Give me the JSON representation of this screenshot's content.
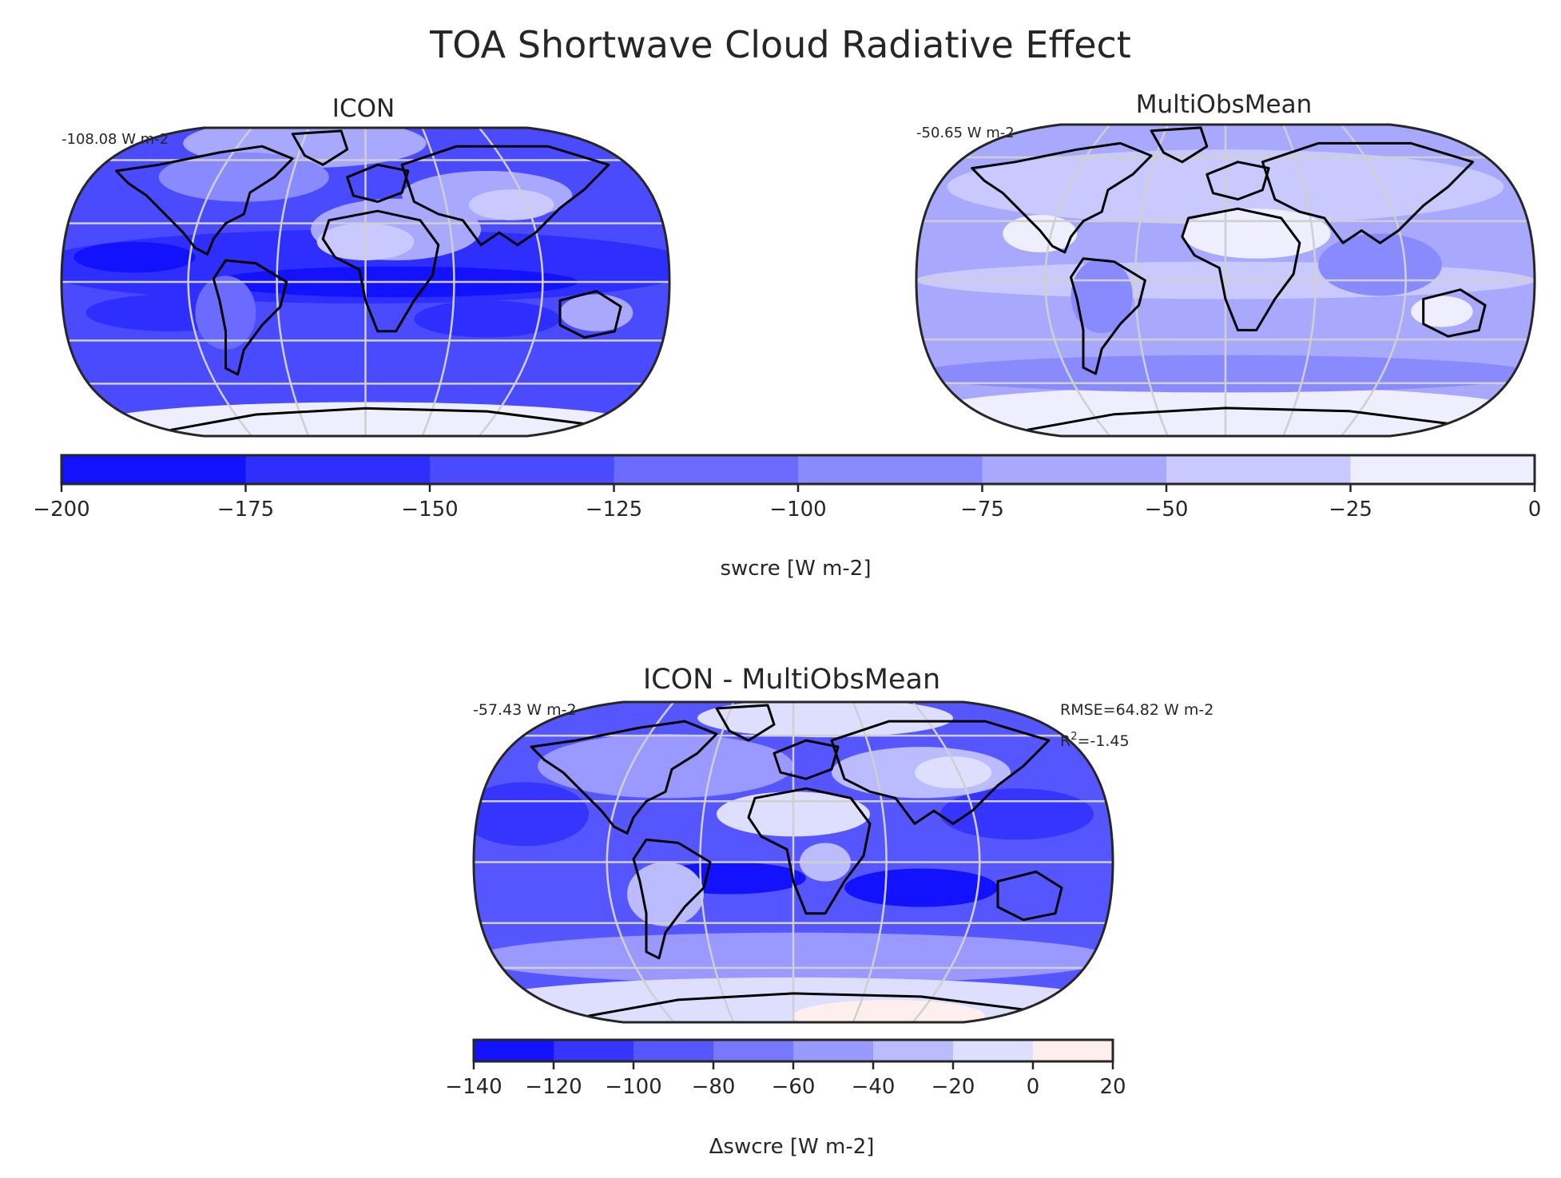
{
  "figure": {
    "title": "TOA Shortwave Cloud Radiative Effect"
  },
  "chart_data": [
    {
      "type": "map",
      "projection": "Robinson",
      "title": "ICON",
      "annotation": "-108.08 W m-2",
      "colorbar": "top"
    },
    {
      "type": "map",
      "projection": "Robinson",
      "title": "MultiObsMean",
      "annotation": "-50.65 W m-2",
      "colorbar": "top"
    },
    {
      "type": "map",
      "projection": "Robinson",
      "title": "ICON - MultiObsMean",
      "annotation": "-57.43 W m-2",
      "stats": {
        "rmse": "RMSE=64.82 W m-2",
        "r2_prefix": "R",
        "r2_sup": "2",
        "r2_value": "=-1.45"
      },
      "colorbar": "bottom"
    }
  ],
  "colorbars": {
    "top": {
      "label": "swcre [W m-2]",
      "levels": [
        -200,
        -175,
        -150,
        -125,
        -100,
        -75,
        -50,
        -25,
        0
      ],
      "tick_labels": [
        "−200",
        "−175",
        "−150",
        "−125",
        "−100",
        "−75",
        "−50",
        "−25",
        "0"
      ],
      "colors": [
        "#1212ff",
        "#2e2eff",
        "#4a4aff",
        "#6b6bff",
        "#8a8aff",
        "#a8a8ff",
        "#c9c9ff",
        "#eeeeff"
      ]
    },
    "bottom": {
      "label": "Δswcre [W m-2]",
      "levels": [
        -140,
        -120,
        -100,
        -80,
        -60,
        -40,
        -20,
        0,
        20
      ],
      "tick_labels": [
        "−140",
        "−120",
        "−100",
        "−80",
        "−60",
        "−40",
        "−20",
        "0",
        "20"
      ],
      "colors": [
        "#1212ff",
        "#3535ff",
        "#5656ff",
        "#7878ff",
        "#9999ff",
        "#bbbbff",
        "#dedeff",
        "#ffeeee"
      ]
    }
  }
}
